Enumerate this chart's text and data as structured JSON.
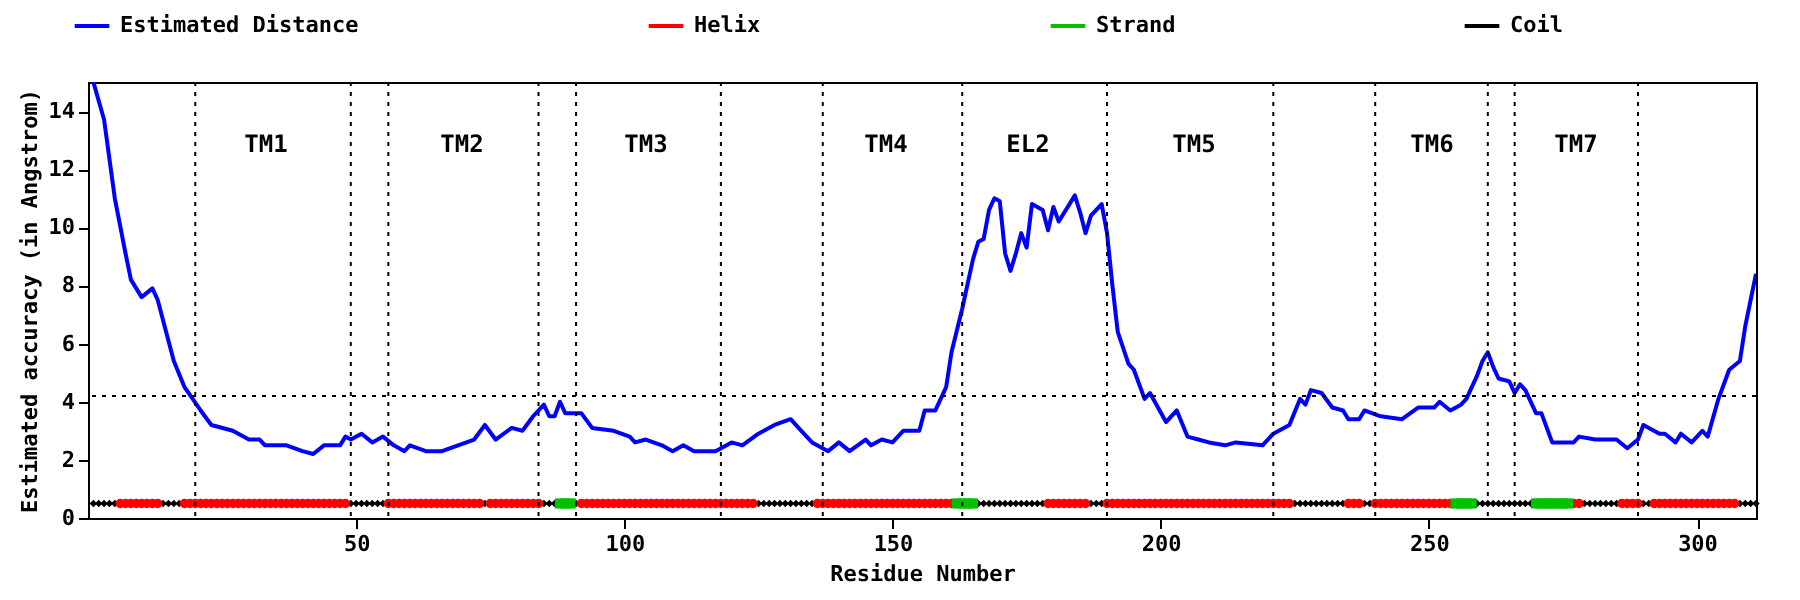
{
  "chart_data": {
    "type": "line",
    "xlabel": "Residue Number",
    "ylabel": "Estimated accuracy (in Angstrom)",
    "xlim": [
      0,
      311
    ],
    "xticks": [
      50,
      100,
      150,
      200,
      250,
      300
    ],
    "ylim": [
      0,
      15
    ],
    "yticks": [
      0,
      2,
      4,
      6,
      8,
      10,
      12,
      14
    ],
    "legend": "top",
    "line_style": "solid",
    "series": [
      {
        "name": "Estimated Distance",
        "color": "#0000ff",
        "type": "line",
        "marker": "none",
        "x": [
          1,
          3,
          5,
          7,
          8,
          10,
          12,
          13,
          15,
          16,
          18,
          21,
          23,
          27,
          30,
          32,
          33,
          37,
          40,
          42,
          44,
          47,
          48,
          49,
          51,
          53,
          55,
          57,
          59,
          60,
          63,
          66,
          69,
          72,
          74,
          76,
          79,
          81,
          83,
          85,
          86,
          87,
          88,
          89,
          92,
          94,
          98,
          101,
          102,
          104,
          107,
          109,
          111,
          113,
          117,
          120,
          122,
          125,
          128,
          131,
          133,
          135,
          138,
          140,
          142,
          145,
          146,
          148,
          150,
          152,
          155,
          156,
          158,
          160,
          161,
          163,
          165,
          166,
          167,
          168,
          169,
          170,
          171,
          172,
          173,
          174,
          175,
          176,
          178,
          179,
          180,
          181,
          184,
          185,
          186,
          187,
          189,
          190,
          191,
          192,
          194,
          195,
          197,
          198,
          201,
          203,
          205,
          207,
          209,
          212,
          214,
          219,
          221,
          224,
          226,
          227,
          228,
          230,
          232,
          234,
          235,
          237,
          238,
          241,
          245,
          248,
          251,
          252,
          254,
          256,
          257,
          259,
          260,
          261,
          262,
          263,
          265,
          266,
          267,
          268,
          270,
          271,
          273,
          275,
          277,
          278,
          281,
          285,
          287,
          289,
          290,
          293,
          294,
          296,
          297,
          299,
          301,
          302,
          304,
          306,
          308,
          309,
          310,
          311
        ],
        "values": [
          15.0,
          13.7,
          11.0,
          9.1,
          8.2,
          7.6,
          7.9,
          7.5,
          6.1,
          5.4,
          4.5,
          3.7,
          3.2,
          3.0,
          2.7,
          2.7,
          2.5,
          2.5,
          2.3,
          2.2,
          2.5,
          2.5,
          2.8,
          2.7,
          2.9,
          2.6,
          2.8,
          2.5,
          2.3,
          2.5,
          2.3,
          2.3,
          2.5,
          2.7,
          3.2,
          2.7,
          3.1,
          3.0,
          3.5,
          3.9,
          3.5,
          3.5,
          4.0,
          3.6,
          3.6,
          3.1,
          3.0,
          2.8,
          2.6,
          2.7,
          2.5,
          2.3,
          2.5,
          2.3,
          2.3,
          2.6,
          2.5,
          2.9,
          3.2,
          3.4,
          3.0,
          2.6,
          2.3,
          2.6,
          2.3,
          2.7,
          2.5,
          2.7,
          2.6,
          3.0,
          3.0,
          3.7,
          3.7,
          4.5,
          5.7,
          7.2,
          8.9,
          9.5,
          9.6,
          10.6,
          11.0,
          10.9,
          9.1,
          8.5,
          9.1,
          9.8,
          9.3,
          10.8,
          10.6,
          9.9,
          10.7,
          10.2,
          11.1,
          10.5,
          9.8,
          10.4,
          10.8,
          9.8,
          8.0,
          6.4,
          5.3,
          5.1,
          4.1,
          4.3,
          3.3,
          3.7,
          2.8,
          2.7,
          2.6,
          2.5,
          2.6,
          2.5,
          2.9,
          3.2,
          4.1,
          3.9,
          4.4,
          4.3,
          3.8,
          3.7,
          3.4,
          3.4,
          3.7,
          3.5,
          3.4,
          3.8,
          3.8,
          4.0,
          3.7,
          3.9,
          4.1,
          4.9,
          5.4,
          5.7,
          5.2,
          4.8,
          4.7,
          4.3,
          4.6,
          4.4,
          3.6,
          3.6,
          2.6,
          2.6,
          2.6,
          2.8,
          2.7,
          2.7,
          2.4,
          2.7,
          3.2,
          2.9,
          2.9,
          2.6,
          2.9,
          2.6,
          3.0,
          2.8,
          4.1,
          5.1,
          5.4,
          6.6,
          7.5,
          8.4
        ]
      },
      {
        "name": "Helix",
        "color": "#ff0000",
        "type": "scatter",
        "marker": "circle",
        "x": [
          6,
          7,
          8,
          9,
          10,
          11,
          12,
          13,
          18,
          19,
          20,
          21,
          22,
          23,
          24,
          25,
          26,
          27,
          28,
          29,
          30,
          31,
          32,
          33,
          34,
          35,
          36,
          37,
          38,
          39,
          40,
          41,
          42,
          43,
          44,
          45,
          46,
          47,
          48,
          56,
          57,
          58,
          59,
          60,
          61,
          62,
          63,
          64,
          65,
          66,
          67,
          68,
          69,
          70,
          71,
          72,
          73,
          75,
          76,
          77,
          78,
          79,
          80,
          81,
          82,
          83,
          84,
          92,
          93,
          94,
          95,
          96,
          97,
          98,
          99,
          100,
          101,
          102,
          103,
          104,
          105,
          106,
          107,
          108,
          109,
          110,
          111,
          112,
          113,
          114,
          115,
          116,
          117,
          118,
          119,
          120,
          121,
          122,
          123,
          124,
          136,
          137,
          138,
          139,
          140,
          141,
          142,
          143,
          144,
          145,
          146,
          147,
          148,
          149,
          150,
          151,
          152,
          153,
          154,
          155,
          156,
          157,
          158,
          159,
          160,
          161,
          179,
          180,
          181,
          182,
          183,
          184,
          185,
          186,
          190,
          191,
          192,
          193,
          194,
          195,
          196,
          197,
          198,
          199,
          200,
          201,
          202,
          203,
          204,
          205,
          206,
          207,
          208,
          209,
          210,
          211,
          212,
          213,
          214,
          215,
          216,
          217,
          218,
          219,
          220,
          221,
          222,
          223,
          224,
          235,
          236,
          237,
          240,
          241,
          242,
          243,
          244,
          245,
          246,
          247,
          248,
          249,
          250,
          251,
          252,
          253,
          254,
          277,
          278,
          286,
          287,
          288,
          289,
          292,
          293,
          294,
          295,
          296,
          297,
          298,
          299,
          300,
          301,
          302,
          303,
          304,
          305,
          306,
          307
        ],
        "values": [
          0.5,
          0.5,
          0.5,
          0.5,
          0.5,
          0.5,
          0.5,
          0.5,
          0.5,
          0.5,
          0.5,
          0.5,
          0.5,
          0.5,
          0.5,
          0.5,
          0.5,
          0.5,
          0.5,
          0.5,
          0.5,
          0.5,
          0.5,
          0.5,
          0.5,
          0.5,
          0.5,
          0.5,
          0.5,
          0.5,
          0.5,
          0.5,
          0.5,
          0.5,
          0.5,
          0.5,
          0.5,
          0.5,
          0.5,
          0.5,
          0.5,
          0.5,
          0.5,
          0.5,
          0.5,
          0.5,
          0.5,
          0.5,
          0.5,
          0.5,
          0.5,
          0.5,
          0.5,
          0.5,
          0.5,
          0.5,
          0.5,
          0.5,
          0.5,
          0.5,
          0.5,
          0.5,
          0.5,
          0.5,
          0.5,
          0.5,
          0.5,
          0.5,
          0.5,
          0.5,
          0.5,
          0.5,
          0.5,
          0.5,
          0.5,
          0.5,
          0.5,
          0.5,
          0.5,
          0.5,
          0.5,
          0.5,
          0.5,
          0.5,
          0.5,
          0.5,
          0.5,
          0.5,
          0.5,
          0.5,
          0.5,
          0.5,
          0.5,
          0.5,
          0.5,
          0.5,
          0.5,
          0.5,
          0.5,
          0.5,
          0.5,
          0.5,
          0.5,
          0.5,
          0.5,
          0.5,
          0.5,
          0.5,
          0.5,
          0.5,
          0.5,
          0.5,
          0.5,
          0.5,
          0.5,
          0.5,
          0.5,
          0.5,
          0.5,
          0.5,
          0.5,
          0.5,
          0.5,
          0.5,
          0.5,
          0.5,
          0.5,
          0.5,
          0.5,
          0.5,
          0.5,
          0.5,
          0.5,
          0.5,
          0.5,
          0.5,
          0.5,
          0.5,
          0.5,
          0.5,
          0.5,
          0.5,
          0.5,
          0.5,
          0.5,
          0.5,
          0.5,
          0.5,
          0.5,
          0.5,
          0.5,
          0.5,
          0.5,
          0.5,
          0.5,
          0.5,
          0.5,
          0.5,
          0.5,
          0.5,
          0.5,
          0.5,
          0.5,
          0.5,
          0.5,
          0.5,
          0.5,
          0.5,
          0.5,
          0.5,
          0.5,
          0.5,
          0.5,
          0.5,
          0.5,
          0.5,
          0.5,
          0.5,
          0.5,
          0.5,
          0.5,
          0.5,
          0.5,
          0.5,
          0.5,
          0.5,
          0.5,
          0.5,
          0.5,
          0.5,
          0.5,
          0.5,
          0.5,
          0.5,
          0.5,
          0.5,
          0.5,
          0.5,
          0.5,
          0.5,
          0.5,
          0.5,
          0.5,
          0.5,
          0.5,
          0.5,
          0.5,
          0.5,
          0.5
        ]
      },
      {
        "name": "Strand",
        "color": "#00c000",
        "type": "scatter",
        "marker": "square",
        "x": [
          88,
          89,
          90,
          162,
          163,
          164,
          165,
          255,
          256,
          257,
          258,
          270,
          271,
          272,
          273,
          274,
          275,
          276
        ],
        "values": [
          0.5,
          0.5,
          0.5,
          0.5,
          0.5,
          0.5,
          0.5,
          0.5,
          0.5,
          0.5,
          0.5,
          0.5,
          0.5,
          0.5,
          0.5,
          0.5,
          0.5,
          0.5
        ]
      },
      {
        "name": "Coil",
        "color": "#000000",
        "type": "scatter",
        "marker": "diamond",
        "x": [
          1,
          2,
          3,
          4,
          5,
          14,
          15,
          16,
          17,
          49,
          50,
          51,
          52,
          53,
          54,
          55,
          74,
          85,
          86,
          87,
          91,
          125,
          126,
          127,
          128,
          129,
          130,
          131,
          132,
          133,
          134,
          135,
          166,
          167,
          168,
          169,
          170,
          171,
          172,
          173,
          174,
          175,
          176,
          177,
          178,
          187,
          188,
          189,
          225,
          226,
          227,
          228,
          229,
          230,
          231,
          232,
          233,
          234,
          238,
          239,
          259,
          260,
          261,
          262,
          263,
          264,
          265,
          266,
          267,
          268,
          269,
          279,
          280,
          281,
          282,
          283,
          284,
          285,
          290,
          291,
          308,
          309,
          310,
          311
        ],
        "values": [
          0.5,
          0.5,
          0.5,
          0.5,
          0.5,
          0.5,
          0.5,
          0.5,
          0.5,
          0.5,
          0.5,
          0.5,
          0.5,
          0.5,
          0.5,
          0.5,
          0.5,
          0.5,
          0.5,
          0.5,
          0.5,
          0.5,
          0.5,
          0.5,
          0.5,
          0.5,
          0.5,
          0.5,
          0.5,
          0.5,
          0.5,
          0.5,
          0.5,
          0.5,
          0.5,
          0.5,
          0.5,
          0.5,
          0.5,
          0.5,
          0.5,
          0.5,
          0.5,
          0.5,
          0.5,
          0.5,
          0.5,
          0.5,
          0.5,
          0.5,
          0.5,
          0.5,
          0.5,
          0.5,
          0.5,
          0.5,
          0.5,
          0.5,
          0.5,
          0.5,
          0.5,
          0.5,
          0.5,
          0.5,
          0.5,
          0.5,
          0.5,
          0.5,
          0.5,
          0.5,
          0.5,
          0.5,
          0.5,
          0.5,
          0.5,
          0.5,
          0.5,
          0.5,
          0.5,
          0.5,
          0.5,
          0.5,
          0.5,
          0.5
        ]
      }
    ],
    "ref_lines": [
      {
        "axis": "x",
        "value": 20,
        "line_style": "dotted",
        "color": "#000000"
      },
      {
        "axis": "x",
        "value": 49,
        "line_style": "dotted",
        "color": "#000000"
      },
      {
        "axis": "x",
        "value": 56,
        "line_style": "dotted",
        "color": "#000000"
      },
      {
        "axis": "x",
        "value": 84,
        "line_style": "dotted",
        "color": "#000000"
      },
      {
        "axis": "x",
        "value": 91,
        "line_style": "dotted",
        "color": "#000000"
      },
      {
        "axis": "x",
        "value": 118,
        "line_style": "dotted",
        "color": "#000000"
      },
      {
        "axis": "x",
        "value": 137,
        "line_style": "dotted",
        "color": "#000000"
      },
      {
        "axis": "x",
        "value": 163,
        "line_style": "dotted",
        "color": "#000000"
      },
      {
        "axis": "x",
        "value": 190,
        "line_style": "dotted",
        "color": "#000000"
      },
      {
        "axis": "x",
        "value": 221,
        "line_style": "dotted",
        "color": "#000000"
      },
      {
        "axis": "x",
        "value": 240,
        "line_style": "dotted",
        "color": "#000000"
      },
      {
        "axis": "x",
        "value": 261,
        "line_style": "dotted",
        "color": "#000000"
      },
      {
        "axis": "x",
        "value": 266,
        "line_style": "dotted",
        "color": "#000000"
      },
      {
        "axis": "x",
        "value": 289,
        "line_style": "dotted",
        "color": "#000000"
      },
      {
        "axis": "y",
        "value": 4.2,
        "line_style": "dotted",
        "color": "#000000"
      }
    ],
    "annotations": [
      "TM1",
      "TM2",
      "TM3",
      "TM4",
      "EL2",
      "TM5",
      "TM6",
      "TM7"
    ]
  }
}
